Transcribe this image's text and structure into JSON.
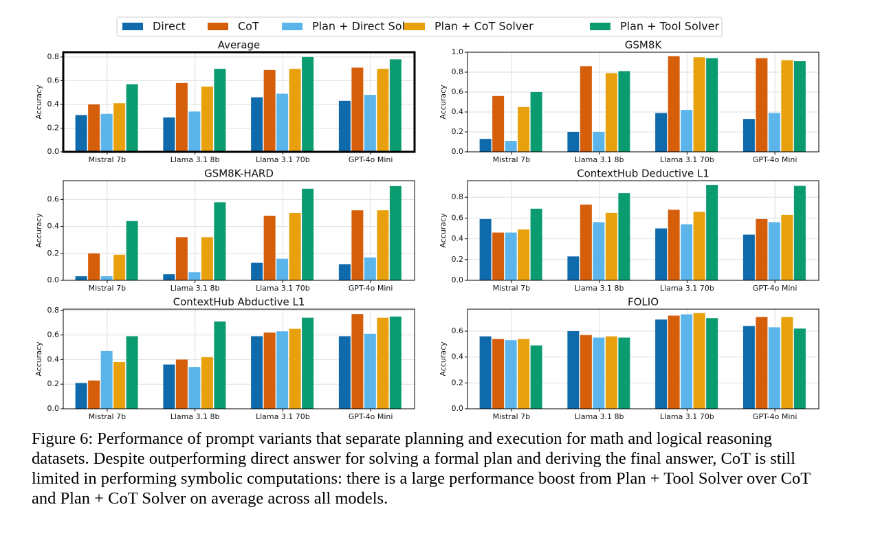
{
  "legend": {
    "items": [
      {
        "name": "Direct",
        "color": "#0f6aab"
      },
      {
        "name": "CoT",
        "color": "#d55e0b"
      },
      {
        "name": "Plan + Direct Solver",
        "color": "#5bb5ea"
      },
      {
        "name": "Plan + CoT Solver",
        "color": "#e8a00d"
      },
      {
        "name": "Plan + Tool Solver",
        "color": "#0a9b70"
      }
    ]
  },
  "chart_data": [
    {
      "type": "bar",
      "title": "Average",
      "y_label": "Accuracy",
      "highlight": true,
      "categories": [
        "Mistral 7b",
        "Llama 3.1 8b",
        "Llama 3.1 70b",
        "GPT-4o Mini"
      ],
      "series": [
        {
          "values": [
            0.31,
            0.29,
            0.46,
            0.43
          ]
        },
        {
          "values": [
            0.4,
            0.58,
            0.69,
            0.71
          ]
        },
        {
          "values": [
            0.32,
            0.34,
            0.49,
            0.48
          ]
        },
        {
          "values": [
            0.41,
            0.55,
            0.7,
            0.7
          ]
        },
        {
          "values": [
            0.57,
            0.7,
            0.8,
            0.78
          ]
        }
      ],
      "ylim": [
        0,
        0.84
      ],
      "yticks": [
        {
          "value": 0,
          "label": "0.0"
        },
        0.2,
        0.4,
        0.6,
        0.8
      ],
      "grid": true
    },
    {
      "type": "bar",
      "title": "GSM8K",
      "y_label": "Accuracy",
      "highlight": false,
      "categories": [
        "Mistral 7b",
        "Llama 3.1 8b",
        "Llama 3.1 70b",
        "GPT-4o Mini"
      ],
      "series": [
        {
          "values": [
            0.13,
            0.2,
            0.39,
            0.33
          ]
        },
        {
          "values": [
            0.56,
            0.86,
            0.96,
            0.94
          ]
        },
        {
          "values": [
            0.11,
            0.2,
            0.42,
            0.39
          ]
        },
        {
          "values": [
            0.45,
            0.79,
            0.95,
            0.92
          ]
        },
        {
          "values": [
            0.6,
            0.81,
            0.94,
            0.91
          ]
        }
      ],
      "ylim": [
        0,
        1.0
      ],
      "yticks": [
        {
          "value": 0,
          "label": "0.0"
        },
        0.2,
        0.4,
        0.6,
        0.8,
        {
          "value": 1,
          "label": "1.0"
        }
      ],
      "grid": true
    },
    {
      "type": "bar",
      "title": "GSM8K-HARD",
      "y_label": "Accuracy",
      "highlight": false,
      "categories": [
        "Mistral 7b",
        "Llama 3.1 8b",
        "Llama 3.1 70b",
        "GPT-4o Mini"
      ],
      "series": [
        {
          "values": [
            0.03,
            0.045,
            0.13,
            0.12
          ]
        },
        {
          "values": [
            0.2,
            0.32,
            0.48,
            0.52
          ]
        },
        {
          "values": [
            0.03,
            0.06,
            0.16,
            0.17
          ]
        },
        {
          "values": [
            0.19,
            0.32,
            0.5,
            0.52
          ]
        },
        {
          "values": [
            0.44,
            0.58,
            0.68,
            0.7
          ]
        }
      ],
      "ylim": [
        0,
        0.74
      ],
      "yticks": [
        {
          "value": 0,
          "label": "0.0"
        },
        0.2,
        0.4,
        0.6
      ],
      "grid": true
    },
    {
      "type": "bar",
      "title": "ContextHub Deductive L1",
      "y_label": "Accuracy",
      "highlight": false,
      "categories": [
        "Mistral 7b",
        "Llama 3.1 8b",
        "Llama 3.1 70b",
        "GPT-4o Mini"
      ],
      "series": [
        {
          "values": [
            0.59,
            0.23,
            0.5,
            0.44
          ]
        },
        {
          "values": [
            0.46,
            0.73,
            0.68,
            0.59
          ]
        },
        {
          "values": [
            0.46,
            0.56,
            0.54,
            0.56
          ]
        },
        {
          "values": [
            0.49,
            0.65,
            0.66,
            0.63
          ]
        },
        {
          "values": [
            0.69,
            0.84,
            0.92,
            0.91
          ]
        }
      ],
      "ylim": [
        0,
        0.96
      ],
      "yticks": [
        {
          "value": 0,
          "label": "0.0"
        },
        0.2,
        0.4,
        0.6,
        0.8
      ],
      "grid": true
    },
    {
      "type": "bar",
      "title": "ContextHub Abductive L1",
      "y_label": "Accuracy",
      "highlight": false,
      "categories": [
        "Mistral 7b",
        "Llama 3.1 8b",
        "Llama 3.1 70b",
        "GPT-4o Mini"
      ],
      "series": [
        {
          "values": [
            0.21,
            0.36,
            0.59,
            0.59
          ]
        },
        {
          "values": [
            0.23,
            0.4,
            0.62,
            0.77
          ]
        },
        {
          "values": [
            0.47,
            0.34,
            0.63,
            0.61
          ]
        },
        {
          "values": [
            0.38,
            0.42,
            0.65,
            0.74
          ]
        },
        {
          "values": [
            0.59,
            0.71,
            0.74,
            0.75
          ]
        }
      ],
      "ylim": [
        0,
        0.81
      ],
      "yticks": [
        {
          "value": 0,
          "label": "0.0"
        },
        0.2,
        0.4,
        0.6,
        0.8
      ],
      "grid": true
    },
    {
      "type": "bar",
      "title": "FOLIO",
      "y_label": "Accuracy",
      "highlight": false,
      "categories": [
        "Mistral 7b",
        "Llama 3.1 8b",
        "Llama 3.1 70b",
        "GPT-4o Mini"
      ],
      "series": [
        {
          "values": [
            0.56,
            0.6,
            0.69,
            0.64
          ]
        },
        {
          "values": [
            0.54,
            0.57,
            0.72,
            0.71
          ]
        },
        {
          "values": [
            0.53,
            0.55,
            0.73,
            0.63
          ]
        },
        {
          "values": [
            0.54,
            0.56,
            0.74,
            0.71
          ]
        },
        {
          "values": [
            0.49,
            0.55,
            0.7,
            0.62
          ]
        }
      ],
      "ylim": [
        0,
        0.77
      ],
      "yticks": [
        {
          "value": 0,
          "label": "0.0"
        },
        0.2,
        0.4,
        0.6
      ],
      "grid": true
    }
  ],
  "caption": "Figure 6: Performance of prompt variants that separate planning and execution for math and logical reasoning datasets. Despite outperforming direct answer for solving a formal plan and deriving the final answer, CoT is still limited in performing symbolic computations: there is a large performance boost from Plan + Tool Solver over CoT and Plan + CoT Solver on average across all models."
}
